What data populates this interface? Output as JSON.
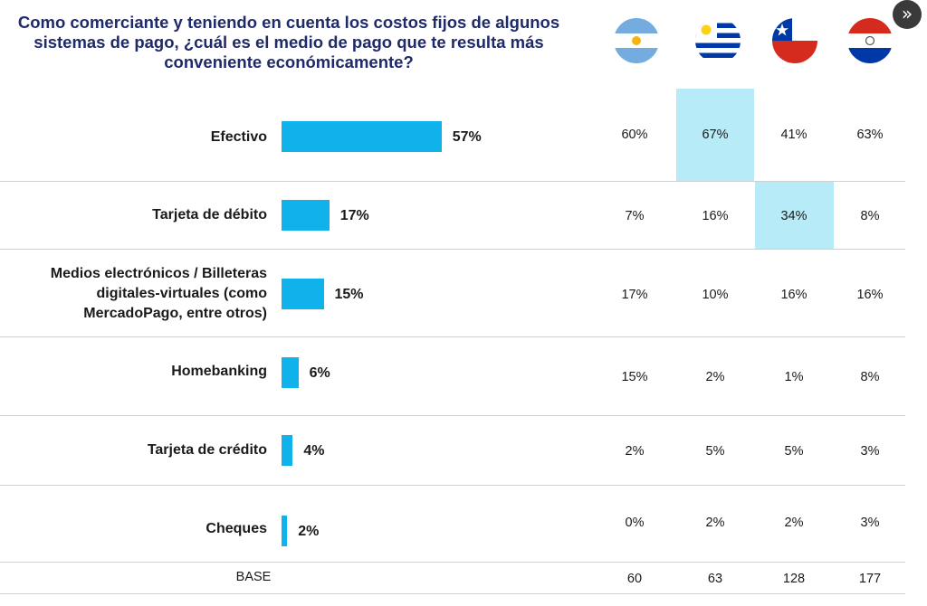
{
  "chart_data": {
    "type": "bar",
    "title": "Como comerciante y teniendo en cuenta los costos fijos de algunos sistemas de pago, ¿cuál es el medio de pago que te resulta más conveniente económicamente?",
    "title_lines": [
      "Como comerciante y teniendo en cuenta los costos fijos de algunos",
      "sistemas de pago, ¿cuál es el medio de pago que te resulta       más",
      "conveniente económicamente?"
    ],
    "categories": [
      "Efectivo",
      "Tarjeta de débito",
      "Medios electrónicos / Billeteras digitales-virtuales (como MercadoPago, entre otros)",
      "Homebanking",
      "Tarjeta de crédito",
      "Cheques"
    ],
    "category_lines": [
      [
        "Efectivo"
      ],
      [
        "Tarjeta de débito"
      ],
      [
        "Medios electrónicos / Billeteras",
        "digitales-virtuales (como",
        "MercadoPago, entre otros)"
      ],
      [
        "Homebanking"
      ],
      [
        "Tarjeta de crédito"
      ],
      [
        "Cheques"
      ]
    ],
    "values": [
      57,
      17,
      15,
      6,
      4,
      2
    ],
    "value_labels": [
      "57%",
      "17%",
      "15%",
      "6%",
      "4%",
      "2%"
    ],
    "value_unit": "%",
    "bar_color": "#0fb2ea",
    "orientation": "horizontal",
    "xlim": [
      0,
      100
    ],
    "countries": [
      {
        "name": "Argentina",
        "flag_icon": "argentina-flag-icon",
        "values": [
          "60%",
          "7%",
          "17%",
          "15%",
          "2%",
          "0%"
        ],
        "base": "60"
      },
      {
        "name": "Uruguay",
        "flag_icon": "uruguay-flag-icon",
        "values": [
          "67%",
          "16%",
          "10%",
          "2%",
          "5%",
          "2%"
        ],
        "base": "63"
      },
      {
        "name": "Chile",
        "flag_icon": "chile-flag-icon",
        "values": [
          "41%",
          "34%",
          "16%",
          "1%",
          "5%",
          "2%"
        ],
        "base": "128"
      },
      {
        "name": "Paraguay",
        "flag_icon": "paraguay-flag-icon",
        "values": [
          "63%",
          "8%",
          "16%",
          "8%",
          "3%",
          "3%"
        ],
        "base": "177"
      }
    ],
    "highlights": [
      {
        "country": "Uruguay",
        "category": "Efectivo"
      },
      {
        "country": "Chile",
        "category": "Tarjeta de débito"
      }
    ],
    "highlight_color": "#b7ebf7",
    "base_label": "BASE"
  },
  "nav": {
    "next_icon": "double-chevron-right-icon",
    "symbol": "»"
  }
}
